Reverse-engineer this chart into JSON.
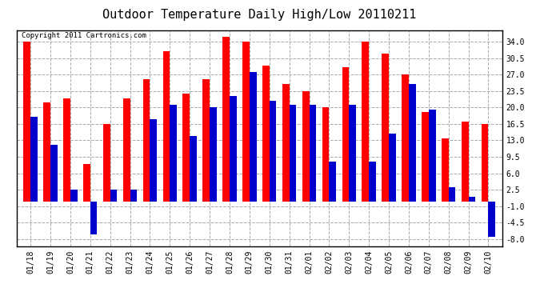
{
  "title": "Outdoor Temperature Daily High/Low 20110211",
  "copyright": "Copyright 2011 Cartronics.com",
  "dates": [
    "01/18",
    "01/19",
    "01/20",
    "01/21",
    "01/22",
    "01/23",
    "01/24",
    "01/25",
    "01/26",
    "01/27",
    "01/28",
    "01/29",
    "01/30",
    "01/31",
    "02/01",
    "02/02",
    "02/03",
    "02/04",
    "02/05",
    "02/06",
    "02/07",
    "02/08",
    "02/09",
    "02/10"
  ],
  "highs": [
    34.0,
    21.0,
    22.0,
    8.0,
    16.5,
    22.0,
    26.0,
    32.0,
    23.0,
    26.0,
    35.0,
    34.0,
    29.0,
    25.0,
    23.5,
    20.0,
    28.5,
    34.0,
    31.5,
    27.0,
    19.0,
    13.5,
    17.0,
    16.5
  ],
  "lows": [
    18.0,
    12.0,
    2.5,
    -7.0,
    2.5,
    2.5,
    17.5,
    20.5,
    14.0,
    20.0,
    22.5,
    27.5,
    21.5,
    20.5,
    20.5,
    8.5,
    20.5,
    8.5,
    14.5,
    25.0,
    19.5,
    3.0,
    1.0,
    -7.5
  ],
  "high_color": "#ff0000",
  "low_color": "#0000cc",
  "bg_color": "#ffffff",
  "grid_color": "#aaaaaa",
  "ylim": [
    -9.5,
    36.5
  ],
  "yticks": [
    -8.0,
    -4.5,
    -1.0,
    2.5,
    6.0,
    9.5,
    13.0,
    16.5,
    20.0,
    23.5,
    27.0,
    30.5,
    34.0
  ],
  "bar_width": 0.35,
  "title_fontsize": 11,
  "tick_fontsize": 7,
  "copyright_fontsize": 6.5
}
